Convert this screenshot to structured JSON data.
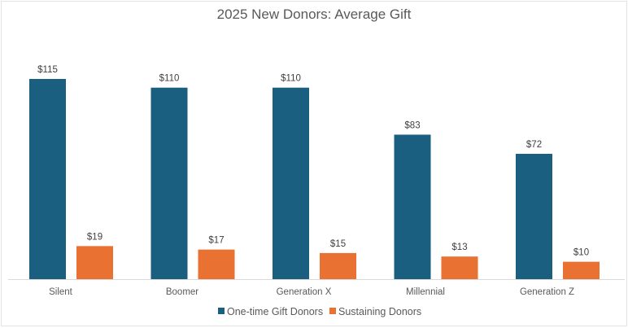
{
  "chart_data": {
    "type": "bar",
    "title": "2025 New Donors: Average Gift",
    "categories": [
      "Silent",
      "Boomer",
      "Generation X",
      "Millennial",
      "Generation Z"
    ],
    "series": [
      {
        "name": "One-time Gift Donors",
        "color": "#1a5e80",
        "values": [
          115,
          110,
          110,
          83,
          72
        ],
        "labels": [
          "$115",
          "$110",
          "$110",
          "$83",
          "$72"
        ]
      },
      {
        "name": "Sustaining Donors",
        "color": "#e97132",
        "values": [
          19,
          17,
          15,
          13,
          10
        ],
        "labels": [
          "$19",
          "$17",
          "$15",
          "$13",
          "$10"
        ]
      }
    ],
    "xlabel": "",
    "ylabel": "",
    "ylim": [
      0,
      125
    ],
    "grid": false,
    "legend": "bottom"
  }
}
